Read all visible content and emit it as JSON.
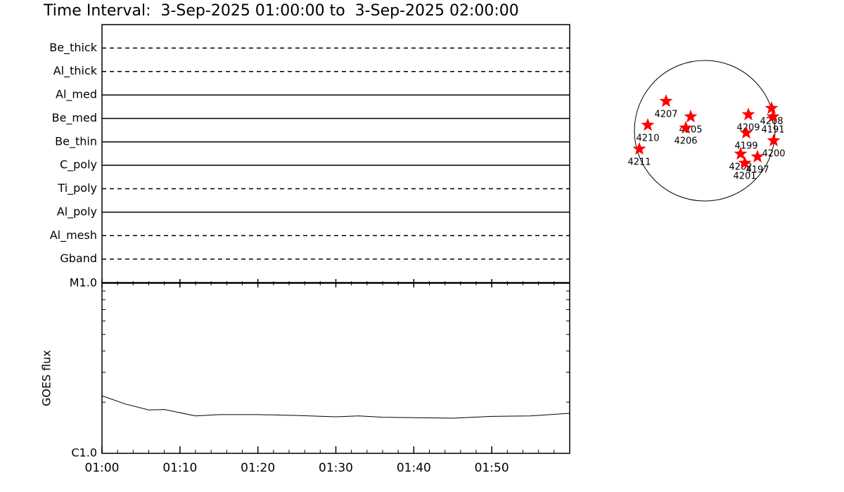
{
  "chart_data": [
    {
      "type": "timeline",
      "title": "Time Interval:  3-Sep-2025 01:00:00 to  3-Sep-2025 02:00:00",
      "categories": [
        "Be_thick",
        "Al_thick",
        "Al_med",
        "Be_med",
        "Be_thin",
        "C_poly",
        "Ti_poly",
        "Al_poly",
        "Al_mesh",
        "Gband"
      ],
      "styles": [
        "dashed",
        "dashed",
        "solid",
        "solid",
        "solid",
        "solid",
        "dashed",
        "solid",
        "dashed",
        "dashed"
      ]
    },
    {
      "type": "line",
      "ylabel": "GOES flux",
      "log": true,
      "x": [
        "01:00",
        "01:03",
        "01:06",
        "01:08",
        "01:12",
        "01:15",
        "01:20",
        "01:25",
        "01:30",
        "01:33",
        "01:36",
        "01:40",
        "01:45",
        "01:50",
        "01:55",
        "02:00"
      ],
      "values": [
        2.18e-06,
        1.95e-06,
        1.8e-06,
        1.81e-06,
        1.66e-06,
        1.69e-06,
        1.69e-06,
        1.67e-06,
        1.64e-06,
        1.66e-06,
        1.63e-06,
        1.62e-06,
        1.61e-06,
        1.65e-06,
        1.66e-06,
        1.72e-06
      ],
      "color": "#000000",
      "xlim": [
        "01:00",
        "02:00"
      ],
      "xticks": [
        "01:00",
        "01:10",
        "01:20",
        "01:30",
        "01:40",
        "01:50"
      ],
      "ylim": [
        1e-06,
        1e-05
      ],
      "yticks": [
        {
          "value": 1e-06,
          "label": "C1.0"
        },
        {
          "value": 1e-05,
          "label": "M1.0"
        }
      ],
      "yminor": [
        2e-06,
        3e-06,
        4e-06,
        5e-06,
        6e-06,
        7e-06,
        8e-06,
        9e-06
      ]
    },
    {
      "type": "disk",
      "color": "#ff0000",
      "labels": [
        "4207",
        "4205",
        "4206",
        "4210",
        "4211",
        "4209",
        "4208",
        "4191",
        "4199",
        "4200",
        "4202",
        "4197",
        "4201"
      ],
      "x": [
        -0.55,
        -0.2,
        -0.27,
        -0.81,
        -0.93,
        0.62,
        0.95,
        0.97,
        0.59,
        0.98,
        0.51,
        0.75,
        0.57
      ],
      "y": [
        0.42,
        0.2,
        0.04,
        0.08,
        -0.26,
        0.23,
        0.32,
        0.2,
        -0.03,
        -0.14,
        -0.33,
        -0.37,
        -0.46
      ]
    }
  ]
}
